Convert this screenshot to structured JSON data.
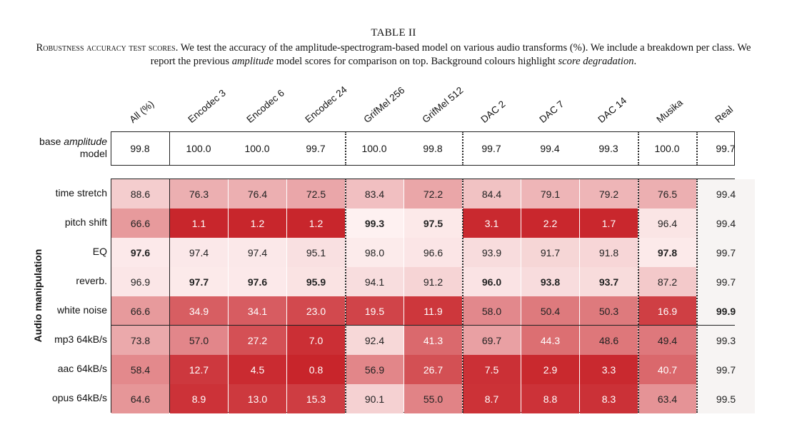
{
  "table_title": "TABLE II",
  "caption": {
    "lead": "Robustness accuracy test scores.",
    "part1": " We test the accuracy of the amplitude-spectrogram-based model on various audio transforms (%). We include a breakdown per class. We report the previous ",
    "em1": "amplitude",
    "part2": " model scores for comparison on top. Background colours highlight ",
    "em2": "score degradation",
    "part3": "."
  },
  "columns": [
    "All (%)",
    "Encodec 3",
    "Encodec 6",
    "Encodec 24",
    "GrifMel 256",
    "GrifMel 512",
    "DAC 2",
    "DAC 7",
    "DAC 14",
    "Musika",
    "Real"
  ],
  "base": {
    "label_prefix": "base ",
    "label_em": "amplitude",
    "label_suffix": "model",
    "values": [
      "99.8",
      "100.0",
      "100.0",
      "99.7",
      "100.0",
      "99.8",
      "99.7",
      "99.4",
      "99.3",
      "100.0",
      "99.7"
    ]
  },
  "y_axis_label": "Audio manipulation",
  "rows": [
    {
      "label": "time stretch",
      "values": [
        "88.6",
        "76.3",
        "76.4",
        "72.5",
        "83.4",
        "72.2",
        "84.4",
        "79.1",
        "79.2",
        "76.5",
        "99.4"
      ],
      "bold": []
    },
    {
      "label": "pitch shift",
      "values": [
        "66.6",
        "1.1",
        "1.2",
        "1.2",
        "99.3",
        "97.5",
        "3.1",
        "2.2",
        "1.7",
        "96.4",
        "99.4"
      ],
      "bold": [
        4,
        5
      ]
    },
    {
      "label": "EQ",
      "values": [
        "97.6",
        "97.4",
        "97.4",
        "95.1",
        "98.0",
        "96.6",
        "93.9",
        "91.7",
        "91.8",
        "97.8",
        "99.7"
      ],
      "bold": [
        0,
        9
      ]
    },
    {
      "label": "reverb.",
      "values": [
        "96.9",
        "97.7",
        "97.6",
        "95.9",
        "94.1",
        "91.2",
        "96.0",
        "93.8",
        "93.7",
        "87.2",
        "99.7"
      ],
      "bold": [
        1,
        2,
        3,
        6,
        7,
        8
      ]
    },
    {
      "label": "white noise",
      "values": [
        "66.6",
        "34.9",
        "34.1",
        "23.0",
        "19.5",
        "11.9",
        "58.0",
        "50.4",
        "50.3",
        "16.9",
        "99.9"
      ],
      "bold": [
        10
      ]
    },
    {
      "label": "mp3 64kB/s",
      "values": [
        "73.8",
        "57.0",
        "27.2",
        "7.0",
        "92.4",
        "41.3",
        "69.7",
        "44.3",
        "48.6",
        "49.4",
        "99.3"
      ],
      "bold": []
    },
    {
      "label": "aac 64kB/s",
      "values": [
        "58.4",
        "12.7",
        "4.5",
        "0.8",
        "56.9",
        "26.7",
        "7.5",
        "2.9",
        "3.3",
        "40.7",
        "99.7"
      ],
      "bold": []
    },
    {
      "label": "opus 64kB/s",
      "values": [
        "64.6",
        "8.9",
        "13.0",
        "15.3",
        "90.1",
        "55.0",
        "8.7",
        "8.8",
        "8.3",
        "63.4",
        "99.5"
      ],
      "bold": []
    }
  ]
}
